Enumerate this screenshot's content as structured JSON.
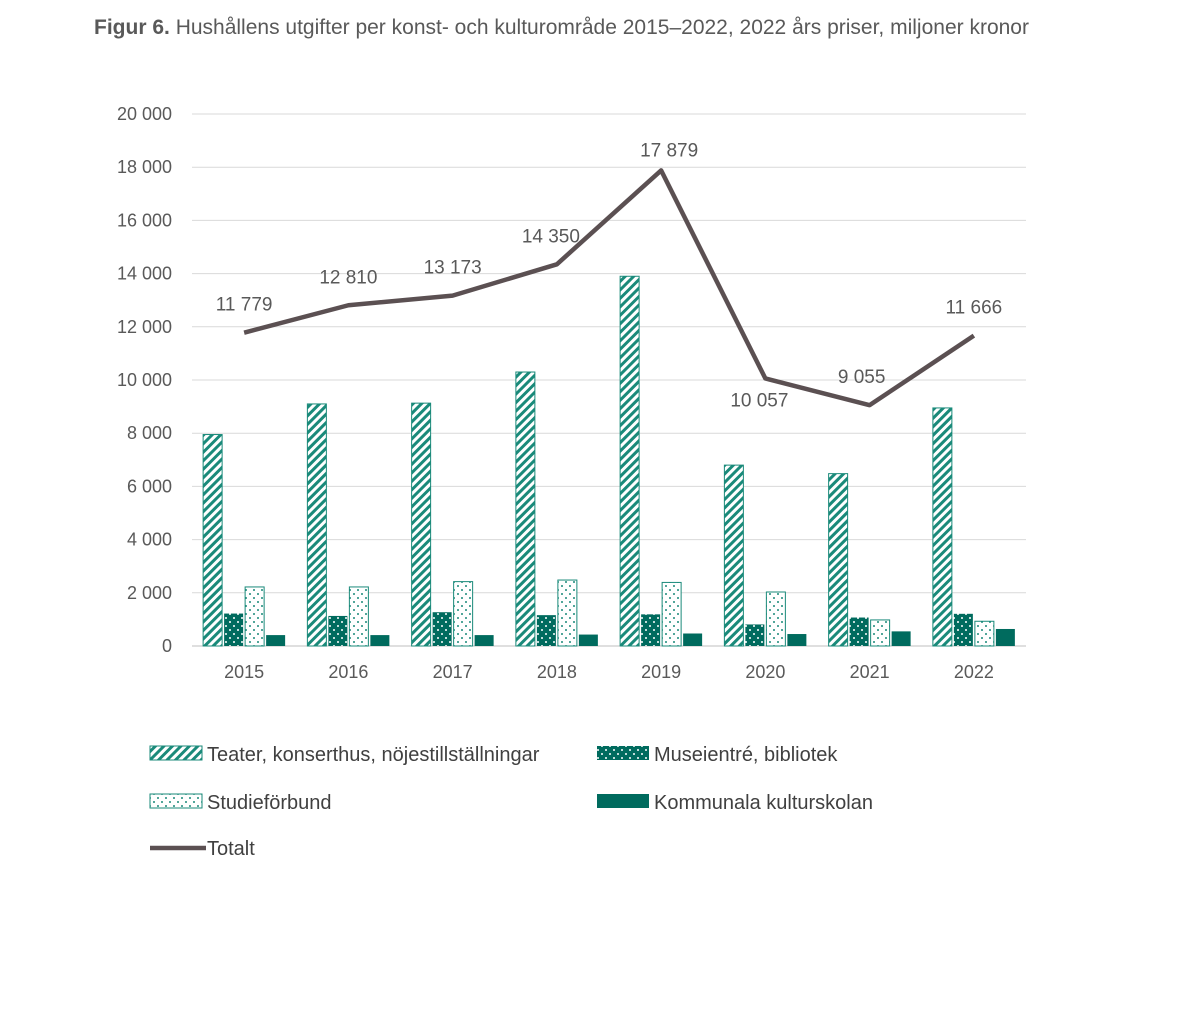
{
  "figure": {
    "label": "Figur 6.",
    "caption": "Hushållens utgifter per konst- och kulturområde 2015–2022, 2022 års priser, miljoner kronor"
  },
  "colors": {
    "teal": "#1a8a7a",
    "dark_teal": "#006b5e",
    "line": "#5b5052",
    "grid": "#d9d9d9",
    "axis": "#bfbfbf"
  },
  "chart_data": {
    "type": "bar",
    "title": "Hushållens utgifter per konst- och kulturområde 2015–2022, 2022 års priser, miljoner kronor",
    "xlabel": "",
    "ylabel": "",
    "ylim": [
      0,
      20000
    ],
    "yticks": [
      0,
      2000,
      4000,
      6000,
      8000,
      10000,
      12000,
      14000,
      16000,
      18000,
      20000
    ],
    "ytick_labels": [
      "0",
      "2 000",
      "4 000",
      "6 000",
      "8 000",
      "10 000",
      "12 000",
      "14 000",
      "16 000",
      "18 000",
      "20 000"
    ],
    "grid": true,
    "legend_position": "bottom",
    "categories": [
      "2015",
      "2016",
      "2017",
      "2018",
      "2019",
      "2020",
      "2021",
      "2022"
    ],
    "series": [
      {
        "name": "Teater, konserthus, nöjestillställningar",
        "kind": "bar",
        "pattern": "diagonal",
        "values": [
          7950,
          9100,
          9130,
          10300,
          13900,
          6800,
          6480,
          8950
        ]
      },
      {
        "name": "Museientré, bibliotek",
        "kind": "bar",
        "pattern": "dots-dark",
        "values": [
          1220,
          1130,
          1270,
          1160,
          1190,
          810,
          1070,
          1210
        ]
      },
      {
        "name": "Studieförbund",
        "kind": "bar",
        "pattern": "dots-light",
        "values": [
          2220,
          2220,
          2420,
          2480,
          2390,
          2030,
          980,
          930
        ]
      },
      {
        "name": "Kommunala kulturskolan",
        "kind": "bar",
        "pattern": "solid",
        "values": [
          410,
          410,
          410,
          430,
          470,
          450,
          550,
          640
        ]
      },
      {
        "name": "Totalt",
        "kind": "line",
        "values": [
          11779,
          12810,
          13173,
          14350,
          17879,
          10057,
          9055,
          11666
        ],
        "labels": [
          "11 779",
          "12 810",
          "13 173",
          "14 350",
          "17 879",
          "10 057",
          "9 055",
          "11 666"
        ]
      }
    ]
  }
}
